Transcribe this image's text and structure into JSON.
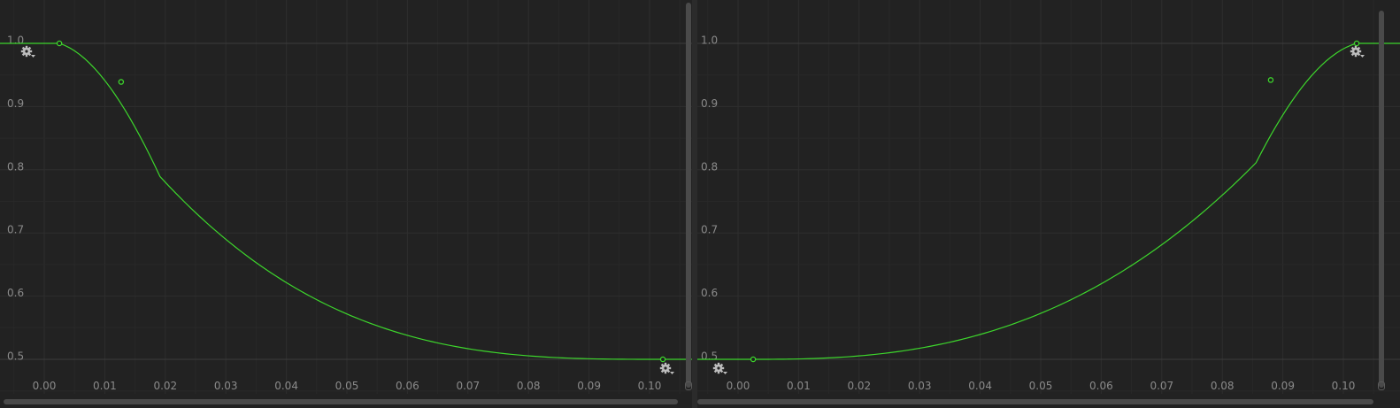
{
  "panels": [
    {
      "id": "left",
      "x_ticks": [
        "0.00",
        "0.01",
        "0.02",
        "0.03",
        "0.04",
        "0.05",
        "0.06",
        "0.07",
        "0.08",
        "0.09",
        "0.10"
      ],
      "y_ticks": [
        "1.0",
        "0.9",
        "0.8",
        "0.7",
        "0.6",
        "0.5"
      ],
      "curve_color": "#3dd62c",
      "keyframes": [
        {
          "time": 0.0025,
          "value": 1.0
        },
        {
          "time": 0.0127,
          "value": 0.939
        },
        {
          "time": 0.1022,
          "value": 0.5
        }
      ]
    },
    {
      "id": "right",
      "x_ticks": [
        "0.00",
        "0.01",
        "0.02",
        "0.03",
        "0.04",
        "0.05",
        "0.06",
        "0.07",
        "0.08",
        "0.09",
        "0.10"
      ],
      "y_ticks": [
        "1.0",
        "0.9",
        "0.8",
        "0.7",
        "0.6",
        "0.5"
      ],
      "curve_color": "#3dd62c",
      "keyframes": [
        {
          "time": 0.0025,
          "value": 0.5
        },
        {
          "time": 0.088,
          "value": 0.942
        },
        {
          "time": 0.1022,
          "value": 1.0
        }
      ]
    }
  ],
  "icons": {
    "gear": "gear-icon",
    "dropdown": "dropdown-arrow-icon"
  }
}
